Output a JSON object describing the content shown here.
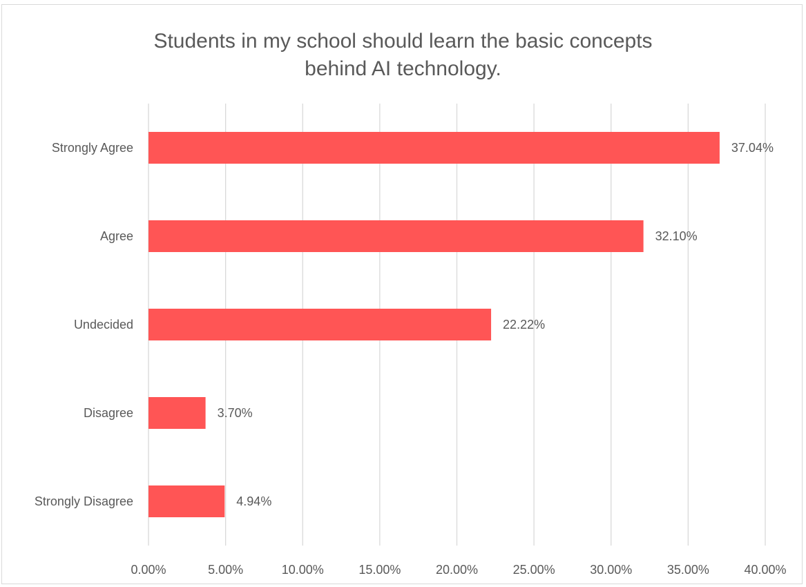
{
  "chart_data": {
    "type": "bar",
    "orientation": "horizontal",
    "title_lines": [
      "Students in my school should learn the basic concepts",
      "behind AI technology."
    ],
    "title": "Students in my school should learn the basic concepts behind AI technology.",
    "categories": [
      "Strongly Agree",
      "Agree",
      "Undecided",
      "Disagree",
      "Strongly Disagree"
    ],
    "values": [
      37.04,
      32.1,
      22.22,
      3.7,
      4.94
    ],
    "data_labels": [
      "37.04%",
      "32.10%",
      "22.22%",
      "3.70%",
      "4.94%"
    ],
    "x_ticks": [
      "0.00%",
      "5.00%",
      "10.00%",
      "15.00%",
      "20.00%",
      "25.00%",
      "30.00%",
      "35.00%",
      "40.00%"
    ],
    "xlim": [
      0,
      40
    ],
    "xlabel": "",
    "ylabel": "",
    "grid": true,
    "legend": "none",
    "bar_color": "#ff5555",
    "grid_color": "#d9d9d9",
    "text_color": "#595959"
  }
}
